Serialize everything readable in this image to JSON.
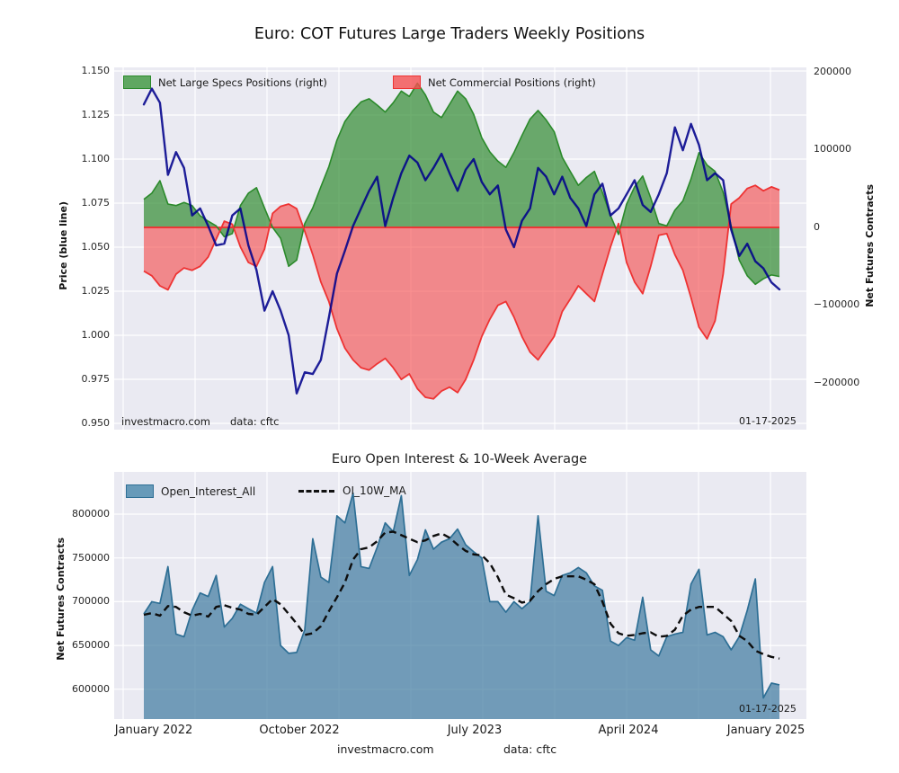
{
  "figure": {
    "top_title": "Euro: COT Futures Large Traders Weekly Positions",
    "bottom_title": "Euro Open Interest & 10-Week Average",
    "watermark": "investmacro.com",
    "source_note": "data: cftc",
    "report_date": "01-17-2025",
    "footer_watermark": "investmacro.com",
    "footer_source": "data: cftc"
  },
  "colors": {
    "plot_bg": "#eaeaf2",
    "grid": "#ffffff",
    "specs_fill": "rgba(50,140,50,0.70)",
    "specs_line": "#2b8a2b",
    "comm_fill": "rgba(245,70,70,0.60)",
    "comm_line": "#ee3333",
    "price_line": "#00008b",
    "oi_fill": "rgba(66,125,161,0.72)",
    "oi_line": "#2e6f95",
    "ma_line": "#0d0d0d"
  },
  "chart_data": [
    {
      "type": "area",
      "title": "Euro: COT Futures Large Traders Weekly Positions",
      "x_start_date": "2021-12-21",
      "x_step_days": 14,
      "x_tick_labels": [
        "January 2022",
        "October 2022",
        "July 2023",
        "April 2024",
        "January 2025"
      ],
      "left_axis": {
        "label": "Price (blue line)",
        "ticks": [
          "1.150",
          "1.125",
          "1.100",
          "1.075",
          "1.050",
          "1.025",
          "1.000",
          "0.975",
          "0.950"
        ],
        "range": [
          0.95,
          1.15
        ]
      },
      "right_axis": {
        "label": "Net Futures Contracts",
        "ticks": [
          "200000",
          "100000",
          "0",
          "−100000",
          "−200000"
        ],
        "range": [
          -230000,
          210000
        ]
      },
      "legend": [
        "Net Large Specs Positions (right)",
        "Net Commercial Positions (right)"
      ],
      "annotations": [
        "investmacro.com",
        "data: cftc",
        "01-17-2025"
      ],
      "series": [
        {
          "name": "Net Large Specs Positions",
          "axis": "right",
          "values": [
            36000,
            44000,
            60000,
            30000,
            28000,
            32000,
            28000,
            15000,
            8000,
            2000,
            -12000,
            -8000,
            28000,
            44000,
            51000,
            25000,
            0,
            -14000,
            -50000,
            -42000,
            5000,
            25000,
            52000,
            78000,
            112000,
            136000,
            150000,
            161000,
            165000,
            157000,
            148000,
            160000,
            175000,
            168000,
            185000,
            170000,
            148000,
            141000,
            158000,
            175000,
            165000,
            145000,
            115000,
            97000,
            85000,
            77000,
            96000,
            118000,
            139000,
            150000,
            138000,
            123000,
            90000,
            72000,
            54000,
            64000,
            72000,
            45000,
            15000,
            -9000,
            30000,
            52000,
            66000,
            38000,
            5000,
            2000,
            22000,
            34000,
            62000,
            96000,
            80000,
            72000,
            45000,
            2000,
            -42000,
            -62000,
            -73000,
            -66000,
            -61000,
            -63000
          ]
        },
        {
          "name": "Net Commercial Positions",
          "axis": "right",
          "values": [
            -56000,
            -62000,
            -75000,
            -80000,
            -60000,
            -52000,
            -55000,
            -50000,
            -38000,
            -15000,
            8000,
            4000,
            -25000,
            -45000,
            -50000,
            -28000,
            18000,
            27000,
            30000,
            24000,
            -5000,
            -35000,
            -70000,
            -95000,
            -130000,
            -155000,
            -170000,
            -180000,
            -183000,
            -175000,
            -168000,
            -180000,
            -195000,
            -188000,
            -207000,
            -218000,
            -220000,
            -210000,
            -205000,
            -212000,
            -195000,
            -170000,
            -140000,
            -118000,
            -100000,
            -95000,
            -115000,
            -140000,
            -160000,
            -170000,
            -155000,
            -140000,
            -108000,
            -92000,
            -75000,
            -85000,
            -95000,
            -60000,
            -25000,
            5000,
            -45000,
            -70000,
            -85000,
            -50000,
            -10000,
            -8000,
            -35000,
            -55000,
            -90000,
            -128000,
            -143000,
            -120000,
            -60000,
            30000,
            38000,
            50000,
            54000,
            47000,
            52000,
            48000
          ]
        },
        {
          "name": "Price",
          "axis": "left",
          "values": [
            1.131,
            1.14,
            1.132,
            1.091,
            1.104,
            1.095,
            1.068,
            1.072,
            1.062,
            1.051,
            1.052,
            1.068,
            1.072,
            1.051,
            1.037,
            1.014,
            1.025,
            1.014,
            1.0,
            0.967,
            0.979,
            0.978,
            0.986,
            1.01,
            1.035,
            1.048,
            1.062,
            1.072,
            1.082,
            1.09,
            1.062,
            1.078,
            1.092,
            1.102,
            1.098,
            1.088,
            1.095,
            1.103,
            1.092,
            1.082,
            1.094,
            1.1,
            1.087,
            1.08,
            1.085,
            1.06,
            1.05,
            1.065,
            1.072,
            1.095,
            1.09,
            1.08,
            1.09,
            1.078,
            1.072,
            1.062,
            1.08,
            1.086,
            1.068,
            1.072,
            1.08,
            1.088,
            1.074,
            1.07,
            1.08,
            1.092,
            1.118,
            1.105,
            1.12,
            1.108,
            1.088,
            1.092,
            1.088,
            1.06,
            1.045,
            1.052,
            1.042,
            1.038,
            1.03,
            1.026
          ]
        }
      ]
    },
    {
      "type": "area",
      "title": "Euro Open Interest & 10-Week Average",
      "x_start_date": "2021-12-21",
      "x_step_days": 14,
      "x_tick_labels": [
        "January 2022",
        "October 2022",
        "July 2023",
        "April 2024",
        "January 2025"
      ],
      "left_axis": {
        "label": "Net Futures Contracts",
        "ticks": [
          "800000",
          "750000",
          "700000",
          "650000",
          "600000"
        ],
        "range": [
          565000,
          845000
        ]
      },
      "legend": [
        "Open_Interest_All",
        "OI_10W_MA"
      ],
      "annotations": [
        "01-17-2025",
        "investmacro.com",
        "data: cftc"
      ],
      "series": [
        {
          "name": "Open_Interest_All",
          "values": [
            686000,
            700000,
            698000,
            740000,
            663000,
            660000,
            690000,
            710000,
            706000,
            730000,
            671000,
            681000,
            697000,
            692000,
            687000,
            722000,
            740000,
            650000,
            641000,
            642000,
            668000,
            772000,
            728000,
            722000,
            798000,
            790000,
            824000,
            740000,
            738000,
            762000,
            790000,
            780000,
            821000,
            730000,
            748000,
            782000,
            760000,
            768000,
            772000,
            783000,
            765000,
            757000,
            750000,
            700000,
            700000,
            688000,
            700000,
            692000,
            700000,
            798000,
            712000,
            707000,
            730000,
            733000,
            739000,
            733000,
            718000,
            713000,
            655000,
            650000,
            659000,
            656000,
            705000,
            645000,
            638000,
            660000,
            663000,
            665000,
            720000,
            737000,
            662000,
            665000,
            660000,
            645000,
            660000,
            690000,
            726000,
            590000,
            607000,
            605000
          ]
        },
        {
          "name": "OI_10W_MA",
          "values": [
            685000,
            687000,
            684000,
            695000,
            694000,
            688000,
            684000,
            686000,
            683000,
            694000,
            696000,
            693000,
            691000,
            686000,
            685000,
            694000,
            703000,
            697000,
            686000,
            675000,
            662000,
            664000,
            672000,
            689000,
            705000,
            722000,
            748000,
            760000,
            762000,
            769000,
            779000,
            780000,
            776000,
            772000,
            768000,
            770000,
            775000,
            778000,
            773000,
            765000,
            758000,
            754000,
            753000,
            744000,
            728000,
            708000,
            704000,
            699000,
            701000,
            712000,
            720000,
            726000,
            729000,
            729000,
            729000,
            725000,
            720000,
            700000,
            675000,
            664000,
            661000,
            662000,
            664000,
            665000,
            660000,
            661000,
            668000,
            684000,
            691000,
            694000,
            694000,
            694000,
            686000,
            678000,
            661000,
            655000,
            644000,
            640000,
            637000,
            635000
          ]
        }
      ]
    }
  ]
}
